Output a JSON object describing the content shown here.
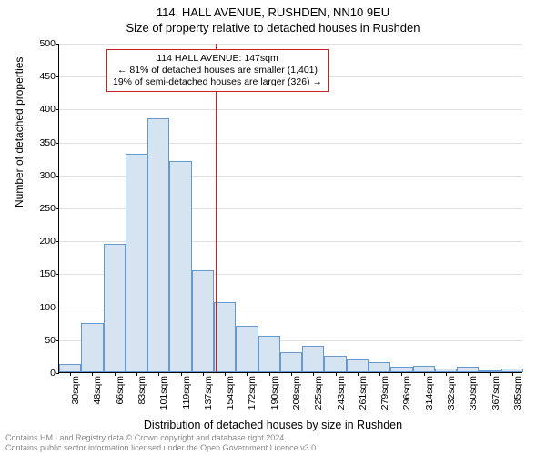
{
  "title_line1": "114, HALL AVENUE, RUSHDEN, NN10 9EU",
  "title_line2": "Size of property relative to detached houses in Rushden",
  "ylabel": "Number of detached properties",
  "xlabel": "Distribution of detached houses by size in Rushden",
  "footer_line1": "Contains HM Land Registry data © Crown copyright and database right 2024.",
  "footer_line2": "Contains public sector information licensed under the Open Government Licence v3.0.",
  "chart": {
    "type": "histogram",
    "ylim": [
      0,
      500
    ],
    "ytick_step": 50,
    "background_color": "#ffffff",
    "grid_color": "#e0e0e0",
    "axis_color": "#000000",
    "bar_fill": "#d6e4f2",
    "bar_border": "#6699cc",
    "refline_color": "#cc2020",
    "font_family": "Arial, sans-serif",
    "tick_fontsize": 10.5,
    "label_fontsize": 12,
    "title_fontsize": 13,
    "categories": [
      "30sqm",
      "48sqm",
      "66sqm",
      "83sqm",
      "101sqm",
      "119sqm",
      "137sqm",
      "154sqm",
      "172sqm",
      "190sqm",
      "208sqm",
      "225sqm",
      "243sqm",
      "261sqm",
      "279sqm",
      "296sqm",
      "314sqm",
      "332sqm",
      "350sqm",
      "367sqm",
      "385sqm"
    ],
    "values": [
      12,
      75,
      195,
      332,
      385,
      320,
      155,
      107,
      70,
      55,
      30,
      40,
      25,
      20,
      15,
      8,
      10,
      5,
      8,
      3,
      5
    ],
    "refline_x_sqm": 147,
    "x_min_sqm": 21,
    "x_max_sqm": 394,
    "annot": {
      "line1": "114 HALL AVENUE: 147sqm",
      "line2": "← 81% of detached houses are smaller (1,401)",
      "line3": "19% of semi-detached houses are larger (326) →",
      "border_color": "#cc2020",
      "background": "#ffffff",
      "fontsize": 10.5
    }
  }
}
